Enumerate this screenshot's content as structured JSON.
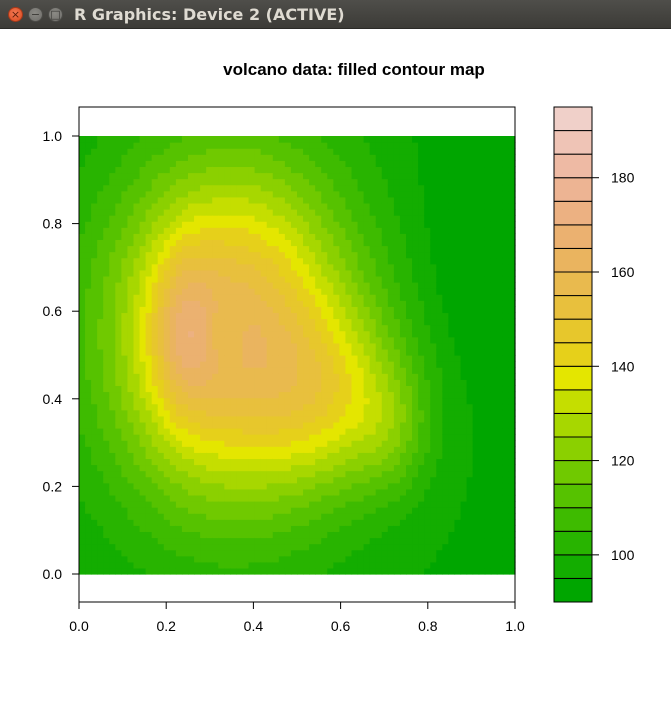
{
  "window": {
    "title": "R Graphics: Device 2 (ACTIVE)",
    "close_glyph": "×",
    "minimize_glyph": "−",
    "maximize_glyph": "□",
    "icons": [
      "close-icon",
      "minimize-icon",
      "maximize-icon"
    ]
  },
  "chart_data": {
    "type": "heatmap",
    "subtype": "filled-contour",
    "title": "volcano data: filled contour map",
    "xlabel": "",
    "ylabel": "",
    "xlim": [
      0,
      1
    ],
    "ylim": [
      0,
      1
    ],
    "xticks": [
      "0.0",
      "0.2",
      "0.4",
      "0.6",
      "0.8",
      "1.0"
    ],
    "yticks": [
      "0.0",
      "0.2",
      "0.4",
      "0.6",
      "0.8",
      "1.0"
    ],
    "grid": false,
    "legend": {
      "placement": "right",
      "range": [
        90,
        195
      ],
      "ticks": [
        "100",
        "120",
        "140",
        "160",
        "180"
      ],
      "levels": [
        90,
        95,
        100,
        105,
        110,
        115,
        120,
        125,
        130,
        135,
        140,
        145,
        150,
        155,
        160,
        165,
        170,
        175,
        180,
        185,
        190,
        195
      ],
      "colors": [
        "#00a600",
        "#13ad00",
        "#28b400",
        "#3ebb00",
        "#56c200",
        "#70c900",
        "#8bd000",
        "#a7d700",
        "#c5de00",
        "#e4e600",
        "#e6d01a",
        "#e7c72c",
        "#e8c03d",
        "#e9ba4e",
        "#eab45f",
        "#ebb170",
        "#ecb182",
        "#edb493",
        "#eebaa4",
        "#efc4b6",
        "#f0d0c9",
        "#f2f2f2"
      ]
    },
    "colormap": "terrain.colors",
    "value_range": [
      94,
      195
    ]
  }
}
